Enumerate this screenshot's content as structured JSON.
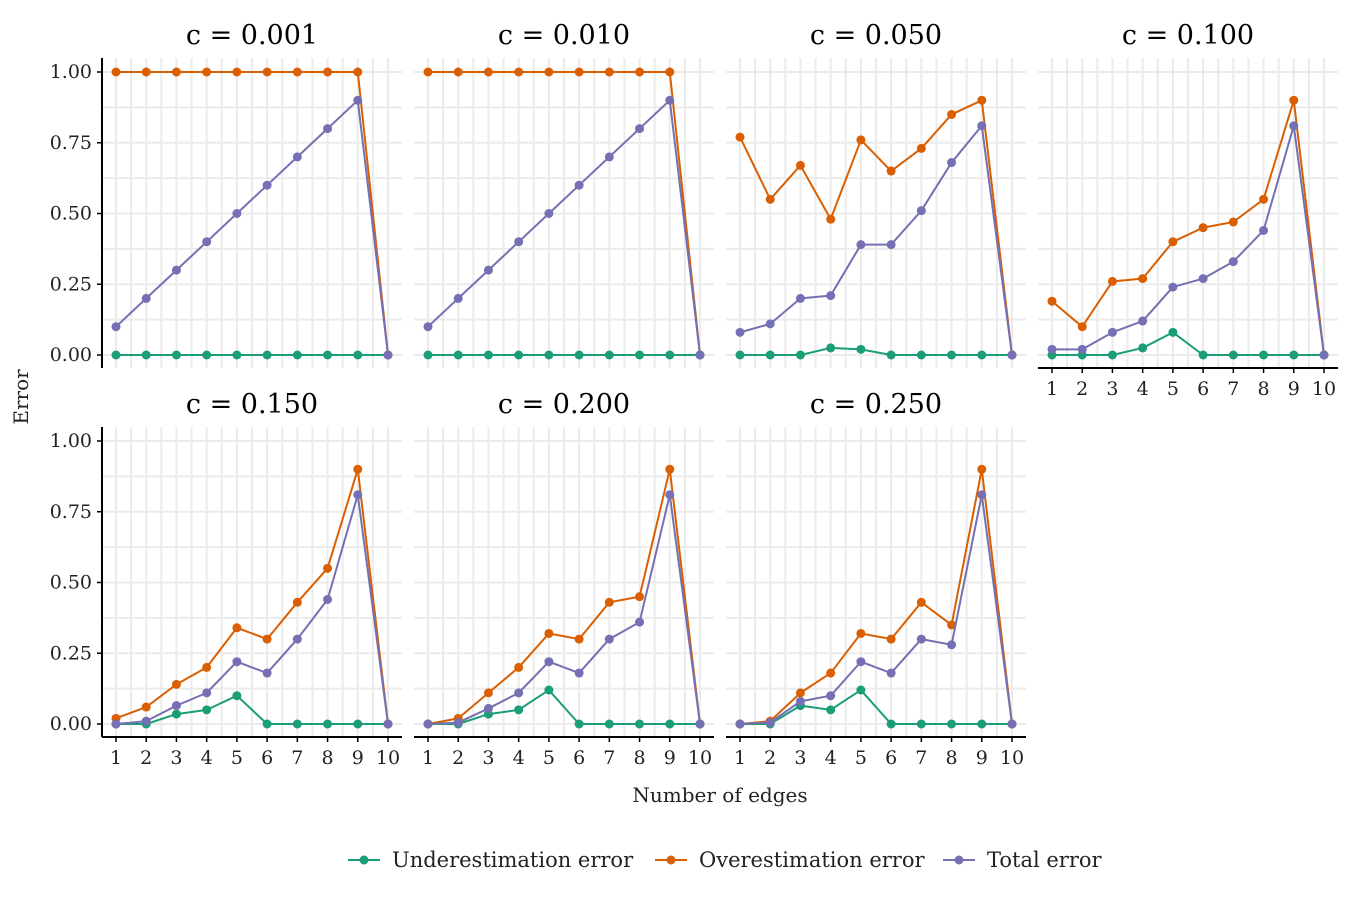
{
  "chart_data": {
    "type": "line",
    "layout": "facet-grid",
    "xlabel": "Number of edges",
    "ylabel": "Error",
    "x": [
      1,
      2,
      3,
      4,
      5,
      6,
      7,
      8,
      9,
      10
    ],
    "ylim": [
      0,
      1
    ],
    "yticks": [
      "0.00",
      "0.25",
      "0.50",
      "0.75",
      "1.00"
    ],
    "ytick_values": [
      0,
      0.25,
      0.5,
      0.75,
      1.0
    ],
    "grid": true,
    "legend": {
      "position": "bottom",
      "entries": [
        {
          "name": "Underestimation error",
          "color": "#1b9e77"
        },
        {
          "name": "Overestimation error",
          "color": "#d95f02"
        },
        {
          "name": "Total error",
          "color": "#7570b3"
        }
      ]
    },
    "panels": [
      {
        "title": "c = 0.001",
        "series": [
          {
            "name": "Underestimation error",
            "values": [
              0,
              0,
              0,
              0,
              0,
              0,
              0,
              0,
              0,
              0
            ]
          },
          {
            "name": "Overestimation error",
            "values": [
              1,
              1,
              1,
              1,
              1,
              1,
              1,
              1,
              1,
              0
            ]
          },
          {
            "name": "Total error",
            "values": [
              0.1,
              0.2,
              0.3,
              0.4,
              0.5,
              0.6,
              0.7,
              0.8,
              0.9,
              0
            ]
          }
        ]
      },
      {
        "title": "c = 0.010",
        "series": [
          {
            "name": "Underestimation error",
            "values": [
              0,
              0,
              0,
              0,
              0,
              0,
              0,
              0,
              0,
              0
            ]
          },
          {
            "name": "Overestimation error",
            "values": [
              1,
              1,
              1,
              1,
              1,
              1,
              1,
              1,
              1,
              0
            ]
          },
          {
            "name": "Total error",
            "values": [
              0.1,
              0.2,
              0.3,
              0.4,
              0.5,
              0.6,
              0.7,
              0.8,
              0.9,
              0
            ]
          }
        ]
      },
      {
        "title": "c = 0.050",
        "series": [
          {
            "name": "Underestimation error",
            "values": [
              0,
              0,
              0,
              0.025,
              0.02,
              0,
              0,
              0,
              0,
              0
            ]
          },
          {
            "name": "Overestimation error",
            "values": [
              0.77,
              0.55,
              0.67,
              0.48,
              0.76,
              0.65,
              0.73,
              0.85,
              0.9,
              0
            ]
          },
          {
            "name": "Total error",
            "values": [
              0.08,
              0.11,
              0.2,
              0.21,
              0.39,
              0.39,
              0.51,
              0.68,
              0.81,
              0
            ]
          }
        ]
      },
      {
        "title": "c = 0.100",
        "series": [
          {
            "name": "Underestimation error",
            "values": [
              0,
              0,
              0,
              0.025,
              0.08,
              0,
              0,
              0,
              0,
              0
            ]
          },
          {
            "name": "Overestimation error",
            "values": [
              0.19,
              0.1,
              0.26,
              0.27,
              0.4,
              0.45,
              0.47,
              0.55,
              0.9,
              0
            ]
          },
          {
            "name": "Total error",
            "values": [
              0.02,
              0.02,
              0.08,
              0.12,
              0.24,
              0.27,
              0.33,
              0.44,
              0.81,
              0
            ]
          }
        ]
      },
      {
        "title": "c = 0.150",
        "series": [
          {
            "name": "Underestimation error",
            "values": [
              0,
              0,
              0.035,
              0.05,
              0.1,
              0,
              0,
              0,
              0,
              0
            ]
          },
          {
            "name": "Overestimation error",
            "values": [
              0.02,
              0.06,
              0.14,
              0.2,
              0.34,
              0.3,
              0.43,
              0.55,
              0.9,
              0
            ]
          },
          {
            "name": "Total error",
            "values": [
              0,
              0.01,
              0.065,
              0.11,
              0.22,
              0.18,
              0.3,
              0.44,
              0.81,
              0
            ]
          }
        ]
      },
      {
        "title": "c = 0.200",
        "series": [
          {
            "name": "Underestimation error",
            "values": [
              0,
              0,
              0.035,
              0.05,
              0.12,
              0,
              0,
              0,
              0,
              0
            ]
          },
          {
            "name": "Overestimation error",
            "values": [
              0,
              0.02,
              0.11,
              0.2,
              0.32,
              0.3,
              0.43,
              0.45,
              0.9,
              0
            ]
          },
          {
            "name": "Total error",
            "values": [
              0,
              0.005,
              0.055,
              0.11,
              0.22,
              0.18,
              0.3,
              0.36,
              0.81,
              0
            ]
          }
        ]
      },
      {
        "title": "c = 0.250",
        "series": [
          {
            "name": "Underestimation error",
            "values": [
              0,
              0,
              0.065,
              0.05,
              0.12,
              0,
              0,
              0,
              0,
              0
            ]
          },
          {
            "name": "Overestimation error",
            "values": [
              0,
              0.01,
              0.11,
              0.18,
              0.32,
              0.3,
              0.43,
              0.35,
              0.9,
              0
            ]
          },
          {
            "name": "Total error",
            "values": [
              0,
              0.005,
              0.08,
              0.1,
              0.22,
              0.18,
              0.3,
              0.28,
              0.81,
              0
            ]
          }
        ]
      }
    ]
  }
}
